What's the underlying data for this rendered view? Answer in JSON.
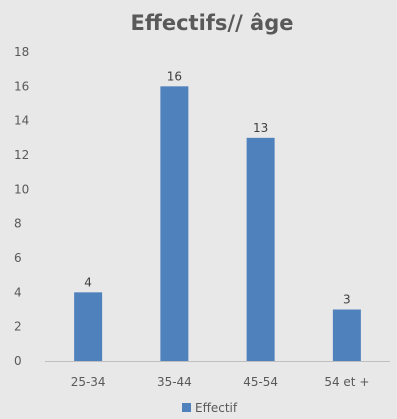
{
  "chart_data": {
    "type": "bar",
    "title": "Effectifs// âge",
    "xlabel": "",
    "ylabel": "",
    "categories": [
      "25-34",
      "35-44",
      "45-54",
      "54 et +"
    ],
    "series": [
      {
        "name": "Effectif",
        "values": [
          4,
          16,
          13,
          3
        ],
        "color": "#4f81bd"
      }
    ],
    "ylim": [
      0,
      18
    ],
    "yticks": [
      0,
      2,
      4,
      6,
      8,
      10,
      12,
      14,
      16,
      18
    ],
    "data_labels": true,
    "grid": false,
    "legend": "bottom",
    "background": "#e8e8e8"
  }
}
